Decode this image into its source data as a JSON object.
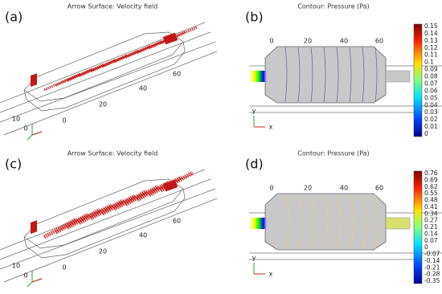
{
  "panels": [
    {
      "label": "(a)",
      "title": "Arrow Surface: Velocity field",
      "axis_labels": [
        "60",
        "40",
        "20",
        "0",
        "10",
        "0"
      ]
    },
    {
      "label": "(b)",
      "title": "Contour: Pressure (Pa)",
      "axis_labels": [
        "0",
        "20",
        "40",
        "60"
      ],
      "triad": [
        "y",
        "x"
      ],
      "colorbar_labels": [
        "0.15",
        "0.14",
        "0.13",
        "0.12",
        "0.11",
        "0.1",
        "0.09",
        "0.08",
        "0.07",
        "0.06",
        "0.05",
        "0.04",
        "0.03",
        "0.02",
        "0.01",
        "0"
      ]
    },
    {
      "label": "(c)",
      "title": "Arrow Surface: Velocity field",
      "axis_labels": [
        "60",
        "40",
        "20",
        "0",
        "10",
        "0"
      ]
    },
    {
      "label": "(d)",
      "title": "Contour: Pressure (Pa)",
      "axis_labels": [
        "0",
        "20",
        "40",
        "60"
      ],
      "triad": [
        "y",
        "x"
      ],
      "colorbar_labels": [
        "0.76",
        "0.69",
        "0.62",
        "0.55",
        "0.48",
        "0.41",
        "0.34",
        "0.27",
        "0.21",
        "0.14",
        "0.07",
        "0",
        "-0.07",
        "-0.14",
        "-0.21",
        "-0.28",
        "-0.35"
      ]
    }
  ]
}
